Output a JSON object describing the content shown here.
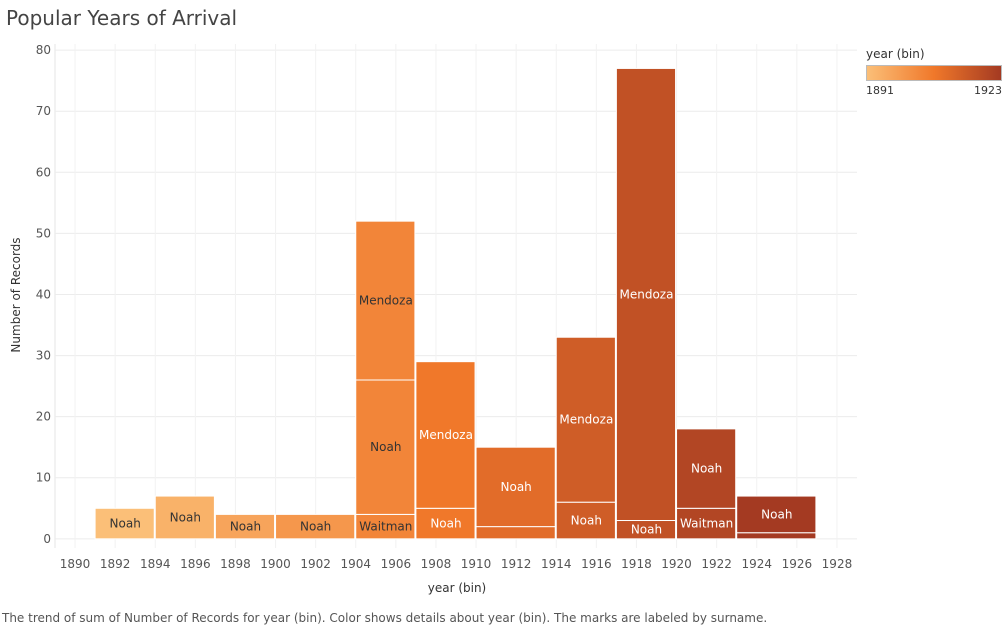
{
  "chart_data": {
    "type": "bar",
    "title": "Popular Years of Arrival",
    "xlabel": "year (bin)",
    "ylabel": "Number of Records",
    "xlim": [
      1889,
      1929
    ],
    "ylim": [
      -1.5,
      81
    ],
    "x_ticks": [
      1890,
      1892,
      1894,
      1896,
      1898,
      1900,
      1902,
      1904,
      1906,
      1908,
      1910,
      1912,
      1914,
      1916,
      1918,
      1920,
      1922,
      1924,
      1926,
      1928
    ],
    "y_ticks": [
      0,
      10,
      20,
      30,
      40,
      50,
      60,
      70,
      80
    ],
    "grid": true,
    "bins": [
      {
        "x0": 1891,
        "x1": 1894,
        "segments": [
          {
            "surname": "Noah",
            "value": 5,
            "label": "Noah"
          }
        ]
      },
      {
        "x0": 1894,
        "x1": 1897,
        "segments": [
          {
            "surname": "Noah",
            "value": 7,
            "label": "Noah"
          }
        ]
      },
      {
        "x0": 1897,
        "x1": 1900,
        "segments": [
          {
            "surname": "Noah",
            "value": 4,
            "label": "Noah"
          }
        ]
      },
      {
        "x0": 1900,
        "x1": 1904,
        "segments": [
          {
            "surname": "Noah",
            "value": 4,
            "label": "Noah"
          }
        ]
      },
      {
        "x0": 1904,
        "x1": 1907,
        "segments": [
          {
            "surname": "Waitman",
            "value": 4,
            "label": "Waitman"
          },
          {
            "surname": "Noah",
            "value": 22,
            "label": "Noah"
          },
          {
            "surname": "Mendoza",
            "value": 26,
            "label": "Mendoza"
          }
        ]
      },
      {
        "x0": 1907,
        "x1": 1910,
        "segments": [
          {
            "surname": "Noah",
            "value": 5,
            "label": "Noah"
          },
          {
            "surname": "Mendoza",
            "value": 24,
            "label": "Mendoza"
          }
        ]
      },
      {
        "x0": 1910,
        "x1": 1914,
        "segments": [
          {
            "surname": "",
            "value": 2,
            "label": ""
          },
          {
            "surname": "Noah",
            "value": 13,
            "label": "Noah"
          }
        ]
      },
      {
        "x0": 1914,
        "x1": 1917,
        "segments": [
          {
            "surname": "Noah",
            "value": 6,
            "label": "Noah"
          },
          {
            "surname": "Mendoza",
            "value": 27,
            "label": "Mendoza"
          }
        ]
      },
      {
        "x0": 1917,
        "x1": 1920,
        "segments": [
          {
            "surname": "Noah",
            "value": 3,
            "label": "Noah"
          },
          {
            "surname": "Mendoza",
            "value": 74,
            "label": "Mendoza"
          }
        ]
      },
      {
        "x0": 1920,
        "x1": 1923,
        "segments": [
          {
            "surname": "Waitman",
            "value": 5,
            "label": "Waitman"
          },
          {
            "surname": "Noah",
            "value": 13,
            "label": "Noah"
          }
        ]
      },
      {
        "x0": 1923,
        "x1": 1927,
        "segments": [
          {
            "surname": "",
            "value": 1,
            "label": ""
          },
          {
            "surname": "Noah",
            "value": 6,
            "label": "Noah"
          }
        ]
      }
    ],
    "legend": {
      "title": "year (bin)",
      "min_label": "1891",
      "max_label": "1923",
      "placement": "top-right",
      "color_start": "#fbbf78",
      "color_mid": "#f0782a",
      "color_end": "#a43a22"
    },
    "caption": "The trend of sum of Number of Records for year (bin).  Color shows details about year (bin).  The marks are labeled by surname."
  }
}
